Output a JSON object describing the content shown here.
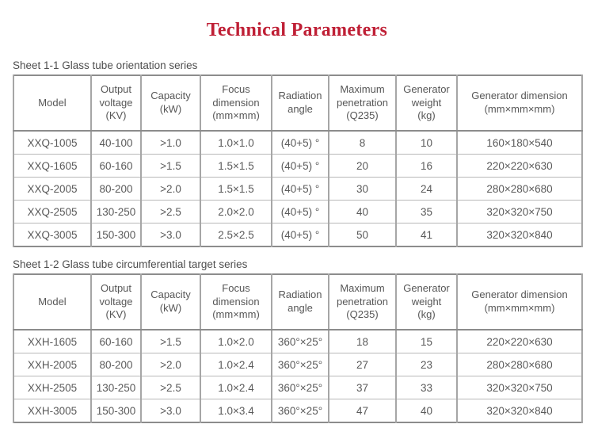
{
  "page": {
    "title": "Technical Parameters"
  },
  "colors": {
    "title": "#bf1f35",
    "table_border": "#8c8c8c",
    "inner_border": "#a6a6a6",
    "text": "#595959",
    "background": "#ffffff"
  },
  "tables": [
    {
      "caption": "Sheet 1-1 Glass tube orientation series",
      "headers": [
        "Model",
        "Output\nvoltage\n(KV)",
        "Capacity\n(kW)",
        "Focus\ndimension\n(mm×mm)",
        "Radiation\nangle",
        "Maximum\npenetration\n(Q235)",
        "Generator\nweight\n(kg)",
        "Generator dimension\n(mm×mm×mm)"
      ],
      "rows": [
        [
          "XXQ-1005",
          "40-100",
          ">1.0",
          "1.0×1.0",
          "(40+5) °",
          "8",
          "10",
          "160×180×540"
        ],
        [
          "XXQ-1605",
          "60-160",
          ">1.5",
          "1.5×1.5",
          "(40+5) °",
          "20",
          "16",
          "220×220×630"
        ],
        [
          "XXQ-2005",
          "80-200",
          ">2.0",
          "1.5×1.5",
          "(40+5) °",
          "30",
          "24",
          "280×280×680"
        ],
        [
          "XXQ-2505",
          "130-250",
          ">2.5",
          "2.0×2.0",
          "(40+5) °",
          "40",
          "35",
          "320×320×750"
        ],
        [
          "XXQ-3005",
          "150-300",
          ">3.0",
          "2.5×2.5",
          "(40+5) °",
          "50",
          "41",
          "320×320×840"
        ]
      ]
    },
    {
      "caption": "Sheet 1-2 Glass tube circumferential target series",
      "headers": [
        "Model",
        "Output\nvoltage\n(KV)",
        "Capacity\n(kW)",
        "Focus\ndimension\n(mm×mm)",
        "Radiation\nangle",
        "Maximum\npenetration\n(Q235)",
        "Generator\nweight\n(kg)",
        "Generator dimension\n(mm×mm×mm)"
      ],
      "rows": [
        [
          "XXH-1605",
          "60-160",
          ">1.5",
          "1.0×2.0",
          "360°×25°",
          "18",
          "15",
          "220×220×630"
        ],
        [
          "XXH-2005",
          "80-200",
          ">2.0",
          "1.0×2.4",
          "360°×25°",
          "27",
          "23",
          "280×280×680"
        ],
        [
          "XXH-2505",
          "130-250",
          ">2.5",
          "1.0×2.4",
          "360°×25°",
          "37",
          "33",
          "320×320×750"
        ],
        [
          "XXH-3005",
          "150-300",
          ">3.0",
          "1.0×3.4",
          "360°×25°",
          "47",
          "40",
          "320×320×840"
        ]
      ]
    }
  ]
}
